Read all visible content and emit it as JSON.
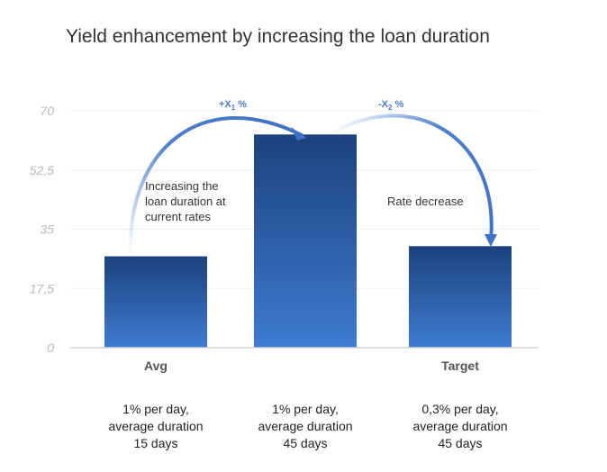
{
  "chart_data": {
    "type": "bar",
    "title": "Yield enhancement by increasing the loan duration",
    "xlabel": "",
    "ylabel": "",
    "ylim": [
      0,
      70
    ],
    "yticks": [
      "0",
      "17,5",
      "35",
      "52,5",
      "70"
    ],
    "yticks_values": [
      0,
      17.5,
      35,
      52.5,
      70
    ],
    "grid": true,
    "categories": [
      "Avg",
      "",
      "Target"
    ],
    "values": [
      27,
      63,
      30
    ],
    "bar_gradient": [
      "#1c427c",
      "#3f7bd0"
    ],
    "annotations": [
      {
        "text_lines": [
          "Increasing the",
          "loan duration at",
          "current rates"
        ]
      },
      {
        "text_lines": [
          "Rate decrease"
        ]
      }
    ],
    "arrows": [
      {
        "label": "+X",
        "subscript": "1",
        "suffix": " %",
        "color": "#3d72c6"
      },
      {
        "label": "-X",
        "subscript": "2",
        "suffix": " %",
        "color": "#3d72c6"
      }
    ],
    "notes": [
      {
        "lines": [
          "1% per day,",
          "average duration",
          "15 days"
        ]
      },
      {
        "lines": [
          "1% per day,",
          "average duration",
          "45 days"
        ]
      },
      {
        "lines": [
          "0,3% per day,",
          "average duration",
          "45 days"
        ]
      }
    ]
  }
}
